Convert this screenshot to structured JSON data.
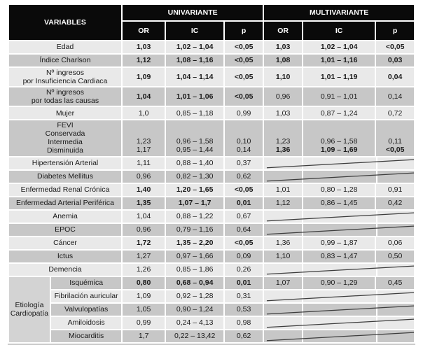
{
  "table": {
    "header": {
      "variables": "VARIABLES",
      "univariante": "UNIVARIANTE",
      "multivariante": "MULTIVARIANTE",
      "sub": [
        "OR",
        "IC",
        "p"
      ]
    },
    "colors": {
      "header_bg": "#0a0a0a",
      "header_text": "#ffffff",
      "row_light": "#e9e9e9",
      "row_dark": "#c7c7c7",
      "group_cell_bg": "#d3d3d3",
      "excluded_line": "#3d3d3d"
    },
    "etiology_group": {
      "label": "Etiología Cardiopatía",
      "span": 5
    },
    "rows": [
      {
        "label": "Edad",
        "shade": "light",
        "uni": {
          "or": "1,03",
          "ic": "1,02 – 1,04",
          "p": "<0,05",
          "bold": true
        },
        "multi": {
          "or": "1,03",
          "ic": "1,02 – 1,04",
          "p": "<0,05",
          "bold": true
        }
      },
      {
        "label": "Índice Charlson",
        "shade": "dark",
        "uni": {
          "or": "1,12",
          "ic": "1,08 – 1,16",
          "p": "<0,05",
          "bold": true
        },
        "multi": {
          "or": "1,08",
          "ic": "1,01 – 1,16",
          "p": "0,03",
          "bold": true
        }
      },
      {
        "label": "Nº ingresos\npor Insuficiencia Cardiaca",
        "shade": "light",
        "uni": {
          "or": "1,09",
          "ic": "1,04 – 1,14",
          "p": "<0,05",
          "bold": true
        },
        "multi": {
          "or": "1,10",
          "ic": "1,01 – 1,19",
          "p": "0,04",
          "bold": true
        }
      },
      {
        "label": "Nº ingresos\npor todas las causas",
        "shade": "dark",
        "uni": {
          "or": "1,04",
          "ic": "1,01 – 1,06",
          "p": "<0,05",
          "bold": true
        },
        "multi": {
          "or": "0,96",
          "ic": "0,91 – 1,01",
          "p": "0,14",
          "bold": false
        }
      },
      {
        "label": "Mujer",
        "shade": "light",
        "uni": {
          "or": "1,0",
          "ic": "0,85 – 1,18",
          "p": "0,99",
          "bold": false
        },
        "multi": {
          "or": "1,03",
          "ic": "0,87 – 1,24",
          "p": "0,72",
          "bold": false
        }
      },
      {
        "label_lines": [
          "FEVI",
          "Conservada",
          "Intermedia",
          "Disminuida"
        ],
        "shade": "dark",
        "uni_multiline": {
          "or": [
            "1,23",
            "1,17"
          ],
          "ic": [
            "0,96 – 1,58",
            "0,95 – 1,44"
          ],
          "p": [
            "0,10",
            "0,14"
          ],
          "bold": [
            false,
            false
          ]
        },
        "multi_multiline": {
          "or": [
            "1,23",
            "1,36"
          ],
          "ic": [
            "0,96 – 1,58",
            "1,09 – 1,69"
          ],
          "p": [
            "0,11",
            "<0,05"
          ],
          "bold": [
            false,
            true
          ]
        }
      },
      {
        "label": "Hipertensión Arterial",
        "shade": "light",
        "uni": {
          "or": "1,11",
          "ic": "0,88 – 1,40",
          "p": "0,37",
          "bold": false
        },
        "multi": null
      },
      {
        "label": "Diabetes Mellitus",
        "shade": "dark",
        "uni": {
          "or": "0,96",
          "ic": "0,82 – 1,30",
          "p": "0,62",
          "bold": false
        },
        "multi": null
      },
      {
        "label": "Enfermedad Renal Crónica",
        "shade": "light",
        "uni": {
          "or": "1,40",
          "ic": "1,20 – 1,65",
          "p": "<0,05",
          "bold": true
        },
        "multi": {
          "or": "1,01",
          "ic": "0,80 – 1,28",
          "p": "0,91",
          "bold": false
        }
      },
      {
        "label": "Enfermedad Arterial Periférica",
        "shade": "dark",
        "uni": {
          "or": "1,35",
          "ic": "1,07 – 1,7",
          "p": "0,01",
          "bold": true
        },
        "multi": {
          "or": "1,12",
          "ic": "0,86 – 1,45",
          "p": "0,42",
          "bold": false
        }
      },
      {
        "label": "Anemia",
        "shade": "light",
        "uni": {
          "or": "1,04",
          "ic": "0,88 – 1,22",
          "p": "0,67",
          "bold": false
        },
        "multi": null
      },
      {
        "label": "EPOC",
        "shade": "dark",
        "uni": {
          "or": "0,96",
          "ic": "0,79 – 1,16",
          "p": "0,64",
          "bold": false
        },
        "multi": null
      },
      {
        "label": "Cáncer",
        "shade": "light",
        "uni": {
          "or": "1,72",
          "ic": "1,35 – 2,20",
          "p": "<0,05",
          "bold": true
        },
        "multi": {
          "or": "1,36",
          "ic": "0,99 – 1,87",
          "p": "0,06",
          "bold": false
        }
      },
      {
        "label": "Ictus",
        "shade": "dark",
        "uni": {
          "or": "1,27",
          "ic": "0,97 – 1,66",
          "p": "0,09",
          "bold": false
        },
        "multi": {
          "or": "1,10",
          "ic": "0,83 – 1,47",
          "p": "0,50",
          "bold": false
        }
      },
      {
        "label": "Demencia",
        "shade": "light",
        "uni": {
          "or": "1,26",
          "ic": "0,85 – 1,86",
          "p": "0,26",
          "bold": false
        },
        "multi": null
      },
      {
        "label": "Isquémica",
        "shade": "dark",
        "group_start": true,
        "uni": {
          "or": "0,80",
          "ic": "0,68 – 0,94",
          "p": "0,01",
          "bold": true
        },
        "multi": {
          "or": "1,07",
          "ic": "0,90 – 1,29",
          "p": "0,45",
          "bold": false
        }
      },
      {
        "label": "Fibrilación auricular",
        "shade": "light",
        "in_group": true,
        "uni": {
          "or": "1,09",
          "ic": "0,92 – 1,28",
          "p": "0,31",
          "bold": false
        },
        "multi": null
      },
      {
        "label": "Valvulopatías",
        "shade": "dark",
        "in_group": true,
        "uni": {
          "or": "1,05",
          "ic": "0,90 – 1,24",
          "p": "0,53",
          "bold": false
        },
        "multi": null
      },
      {
        "label": "Amiloidosis",
        "shade": "light",
        "in_group": true,
        "uni": {
          "or": "0,99",
          "ic": "0,24 – 4,13",
          "p": "0,98",
          "bold": false
        },
        "multi": null
      },
      {
        "label": "Miocarditis",
        "shade": "dark",
        "in_group": true,
        "uni": {
          "or": "1,7",
          "ic": "0,22 – 13,42",
          "p": "0,62",
          "bold": false
        },
        "multi": null
      }
    ]
  }
}
